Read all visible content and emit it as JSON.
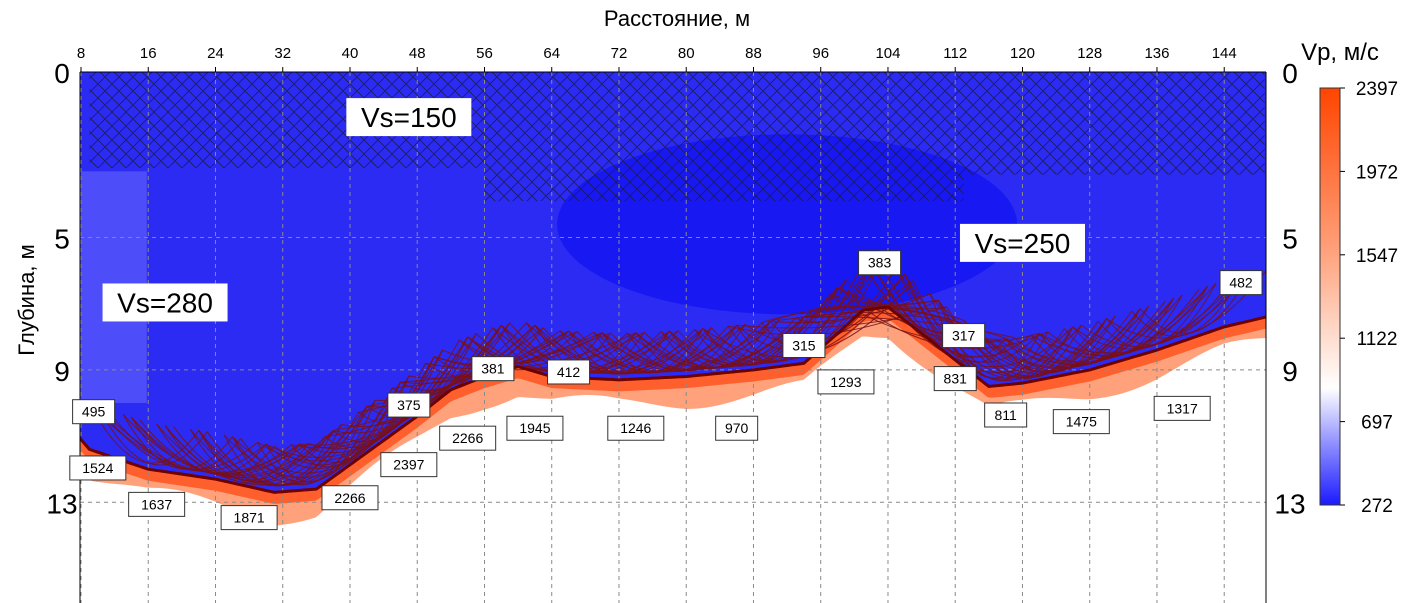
{
  "chart_data": {
    "type": "heatmap",
    "title": "Расстояние, м",
    "xlabel": "Расстояние, м",
    "ylabel": "Глубина, м",
    "x_ticks": [
      8,
      16,
      24,
      32,
      40,
      48,
      56,
      64,
      72,
      80,
      88,
      96,
      104,
      112,
      120,
      128,
      136,
      144
    ],
    "y_ticks": [
      0,
      5,
      9,
      13
    ],
    "xlim": [
      7,
      150
    ],
    "ylim": [
      0,
      16
    ],
    "grid": true,
    "colorbar": {
      "title": "Vp, м/с",
      "ticks": [
        2397,
        1972,
        1547,
        1122,
        697,
        272
      ],
      "min": 272,
      "max": 2397,
      "colors": [
        "#1a1aff",
        "#ffffff",
        "#ff4500"
      ]
    },
    "layers": [
      {
        "label": "Vs=150",
        "x": 47,
        "depth": 1.0
      },
      {
        "label": "Vs=250",
        "x": 120,
        "depth": 4.8
      },
      {
        "label": "Vs=280",
        "x": 18,
        "depth": 6.6
      }
    ],
    "refractor_boundary": [
      [
        7,
        10.8
      ],
      [
        9,
        11.4
      ],
      [
        16,
        12.0
      ],
      [
        24,
        12.3
      ],
      [
        31,
        12.7
      ],
      [
        36,
        12.6
      ],
      [
        42,
        11.5
      ],
      [
        48,
        10.4
      ],
      [
        52,
        9.6
      ],
      [
        56,
        9.2
      ],
      [
        60,
        8.9
      ],
      [
        64,
        9.2
      ],
      [
        72,
        9.3
      ],
      [
        80,
        9.2
      ],
      [
        88,
        9.0
      ],
      [
        94,
        8.8
      ],
      [
        98,
        7.9
      ],
      [
        101,
        7.2
      ],
      [
        104,
        7.1
      ],
      [
        106,
        7.5
      ],
      [
        110,
        8.3
      ],
      [
        114,
        9.1
      ],
      [
        116,
        9.5
      ],
      [
        120,
        9.4
      ],
      [
        128,
        9.0
      ],
      [
        136,
        8.4
      ],
      [
        144,
        7.7
      ],
      [
        149,
        7.4
      ]
    ],
    "velocity_labels": [
      {
        "x": 9.5,
        "depth": 9.9,
        "value": "495"
      },
      {
        "x": 10,
        "depth": 11.6,
        "value": "1524"
      },
      {
        "x": 17,
        "depth": 12.7,
        "value": "1637"
      },
      {
        "x": 28,
        "depth": 13.1,
        "value": "1871"
      },
      {
        "x": 40,
        "depth": 12.5,
        "value": "2266"
      },
      {
        "x": 47,
        "depth": 11.5,
        "value": "2397"
      },
      {
        "x": 54,
        "depth": 10.7,
        "value": "2266"
      },
      {
        "x": 47,
        "depth": 9.7,
        "value": "375"
      },
      {
        "x": 57,
        "depth": 8.6,
        "value": "381"
      },
      {
        "x": 66,
        "depth": 8.7,
        "value": "412"
      },
      {
        "x": 62,
        "depth": 10.4,
        "value": "1945"
      },
      {
        "x": 74,
        "depth": 10.4,
        "value": "1246"
      },
      {
        "x": 86,
        "depth": 10.4,
        "value": "970"
      },
      {
        "x": 94,
        "depth": 7.9,
        "value": "315"
      },
      {
        "x": 99,
        "depth": 9.0,
        "value": "1293"
      },
      {
        "x": 103,
        "depth": 5.4,
        "value": "383"
      },
      {
        "x": 112,
        "depth": 8.9,
        "value": "831"
      },
      {
        "x": 113,
        "depth": 7.6,
        "value": "317"
      },
      {
        "x": 118,
        "depth": 10.0,
        "value": "811"
      },
      {
        "x": 127,
        "depth": 10.2,
        "value": "1475"
      },
      {
        "x": 139,
        "depth": 9.8,
        "value": "1317"
      },
      {
        "x": 146,
        "depth": 6.0,
        "value": "482"
      }
    ]
  }
}
